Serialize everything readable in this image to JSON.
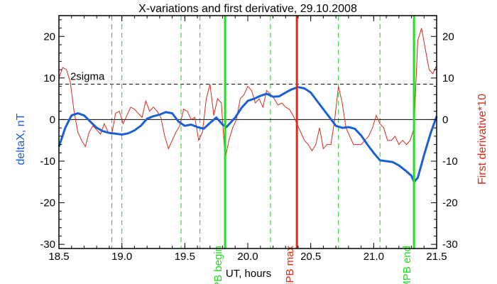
{
  "chart_data": {
    "type": "line",
    "title": "X-variations and first derivative, 29.10.2008",
    "xlabel": "UT, hours",
    "ylabel_left": "deltaX, nT",
    "ylabel_right": "First derivative*10",
    "xlim": [
      18.5,
      21.5
    ],
    "ylim": [
      -31,
      25
    ],
    "x_ticks": [
      "18.5",
      "19.0",
      "19.5",
      "20.0",
      "20.5",
      "21.0",
      "21.5"
    ],
    "y_ticks": [
      "20",
      "10",
      "0",
      "-10",
      "-20",
      "-30"
    ],
    "colors": {
      "deltaX": "#1a5fd6",
      "derivative": "#d62a1a",
      "mpb": "#22dd22",
      "mpb_max": "#e82a10",
      "dashed_green": "#22cc22"
    },
    "sigma_label": "2sigma",
    "sigma_level": 8.5,
    "zero_level": 0,
    "dashed_green_lines": [
      18.92,
      19.0,
      19.47,
      19.62,
      20.18,
      20.72,
      21.05
    ],
    "event_lines": [
      {
        "x": 19.82,
        "label": "MPB begin",
        "color": "#22dd22"
      },
      {
        "x": 20.39,
        "label": "MPB max",
        "color": "#e82a10"
      },
      {
        "x": 21.32,
        "label": "MPB end",
        "color": "#22dd22"
      }
    ],
    "series": [
      {
        "key": "deltaX",
        "x": [
          18.5,
          18.55,
          18.6,
          18.65,
          18.7,
          18.75,
          18.8,
          18.85,
          18.9,
          18.95,
          19.0,
          19.05,
          19.1,
          19.15,
          19.2,
          19.25,
          19.3,
          19.35,
          19.4,
          19.45,
          19.5,
          19.55,
          19.6,
          19.65,
          19.7,
          19.75,
          19.8,
          19.83,
          19.9,
          19.95,
          20.0,
          20.05,
          20.1,
          20.15,
          20.2,
          20.25,
          20.3,
          20.35,
          20.4,
          20.45,
          20.5,
          20.55,
          20.6,
          20.65,
          20.7,
          20.75,
          20.8,
          20.85,
          20.9,
          20.95,
          21.0,
          21.05,
          21.1,
          21.15,
          21.2,
          21.25,
          21.3,
          21.32,
          21.35,
          21.4,
          21.45,
          21.5
        ],
        "y": [
          -6.5,
          -2.0,
          1.0,
          1.5,
          1.0,
          -0.5,
          -2.0,
          -2.8,
          -3.2,
          -3.4,
          -3.6,
          -3.3,
          -2.6,
          -1.5,
          0.2,
          0.8,
          1.2,
          1.8,
          1.5,
          -0.5,
          -1.5,
          -1.2,
          -1.8,
          -2.2,
          -0.8,
          0.5,
          -1.2,
          -1.8,
          0.5,
          2.8,
          4.5,
          5.0,
          5.7,
          6.2,
          5.5,
          5.6,
          6.5,
          7.3,
          7.8,
          7.5,
          6.5,
          4.5,
          2.5,
          0.5,
          -1.5,
          -2.0,
          -1.8,
          -2.2,
          -3.8,
          -6.0,
          -8.0,
          -9.8,
          -10.0,
          -10.2,
          -11.0,
          -12.2,
          -13.5,
          -15.0,
          -14.0,
          -8.5,
          -3.5,
          0.8
        ]
      },
      {
        "key": "derivative",
        "x": [
          18.5,
          18.53,
          18.56,
          18.59,
          18.62,
          18.65,
          18.68,
          18.71,
          18.74,
          18.77,
          18.8,
          18.83,
          18.86,
          18.89,
          18.92,
          18.95,
          18.98,
          19.01,
          19.04,
          19.07,
          19.1,
          19.13,
          19.16,
          19.19,
          19.22,
          19.25,
          19.28,
          19.31,
          19.34,
          19.37,
          19.4,
          19.43,
          19.46,
          19.49,
          19.52,
          19.55,
          19.58,
          19.61,
          19.64,
          19.67,
          19.7,
          19.73,
          19.76,
          19.79,
          19.82,
          19.85,
          19.88,
          19.91,
          19.94,
          19.97,
          20.0,
          20.03,
          20.06,
          20.09,
          20.12,
          20.15,
          20.18,
          20.21,
          20.24,
          20.27,
          20.3,
          20.33,
          20.36,
          20.39,
          20.42,
          20.45,
          20.48,
          20.51,
          20.54,
          20.57,
          20.6,
          20.63,
          20.66,
          20.69,
          20.72,
          20.75,
          20.78,
          20.81,
          20.84,
          20.87,
          20.9,
          20.93,
          20.96,
          20.99,
          21.02,
          21.05,
          21.08,
          21.11,
          21.14,
          21.17,
          21.2,
          21.23,
          21.26,
          21.29,
          21.32,
          21.35,
          21.38,
          21.41,
          21.44,
          21.47,
          21.5
        ],
        "y": [
          10,
          12.5,
          12,
          9,
          2,
          -3,
          -5,
          -6.5,
          -3,
          -1.5,
          -2.5,
          -3.5,
          -1,
          -3,
          -3.5,
          1.5,
          2,
          -1,
          1,
          3,
          2.5,
          1.5,
          0.5,
          4.5,
          2,
          3,
          2,
          0.5,
          -4,
          -7,
          -5,
          -3,
          -1.5,
          2.5,
          2,
          0,
          0.5,
          -5,
          -3,
          5,
          8.5,
          1,
          5,
          4,
          -9.5,
          -5,
          -2,
          0,
          5,
          6,
          8,
          7,
          4,
          5,
          3,
          7,
          6,
          5,
          3.5,
          4,
          3,
          2.5,
          1,
          -1,
          -3,
          -5,
          -6,
          -7.5,
          -6,
          -2,
          -7,
          -6,
          -6,
          0,
          8,
          4,
          -2,
          -4,
          -6,
          -6,
          -6,
          -5,
          -4,
          -2,
          1,
          -1,
          -2,
          -5,
          -5,
          -4,
          -6,
          -5,
          -6,
          -5,
          -2,
          19,
          22,
          17,
          12,
          11,
          13
        ]
      }
    ]
  }
}
